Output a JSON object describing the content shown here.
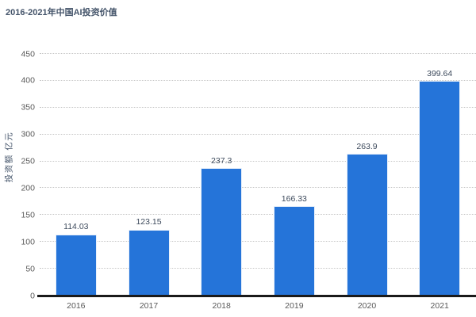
{
  "page": {
    "title": "2016-2021年中国AI投资价值"
  },
  "colors": {
    "bar": "#2574D9",
    "title_text": "#44546A",
    "axis_text": "#595959",
    "data_label_text": "#3d4a5c",
    "gridline": "#c6c6c6",
    "axis_line": "#1a1a1a",
    "background": "#ffffff"
  },
  "chart_data": {
    "type": "bar",
    "title": "2016-2021年中国AI投资价值",
    "categories": [
      "2016",
      "2017",
      "2018",
      "2019",
      "2020",
      "2021"
    ],
    "values": [
      114.03,
      123.15,
      237.3,
      166.33,
      263.9,
      399.64
    ],
    "value_labels": [
      "114.03",
      "123.15",
      "237.3",
      "166.33",
      "263.9",
      "399.64"
    ],
    "xlabel": "",
    "ylabel": "投资额 亿元",
    "ylim": [
      0,
      450
    ],
    "yticks": [
      0,
      50,
      100,
      150,
      200,
      250,
      300,
      350,
      400,
      450
    ],
    "grid": "horizontal-dotted",
    "legend": "none",
    "bar_color": "#2574D9"
  }
}
